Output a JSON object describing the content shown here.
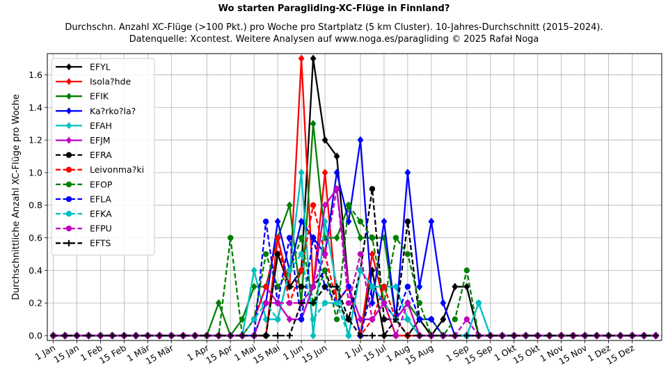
{
  "chart_data": {
    "type": "line",
    "title": "Wo starten Paragliding-XC-Flüge in Finnland?",
    "subtitle_lines": [
      "Durchschn. Anzahl XC-Flüge (>100 Pkt.) pro Woche pro Startplatz (5 km Cluster). 10-Jahres-Durchschnitt (2015–2024).",
      "Datenquelle: Xcontest. Weitere Analysen auf www.noga.es/paragliding © 2025 Rafał Noga"
    ],
    "ylabel": "Durchschnittliche Anzahl XC-Flüge pro Woche",
    "xlabel": "",
    "ylim": [
      -0.03,
      1.73
    ],
    "xlim": [
      -0.5,
      51.5
    ],
    "yticks": [
      0.0,
      0.2,
      0.4,
      0.6,
      0.8,
      1.0,
      1.2,
      1.4,
      1.6
    ],
    "ytick_labels": [
      "0.0",
      "0.2",
      "0.4",
      "0.6",
      "0.8",
      "1.0",
      "1.2",
      "1.4",
      "1.6"
    ],
    "xticks": [
      0,
      2,
      4,
      6,
      8,
      10,
      13,
      15,
      17,
      19,
      21,
      23,
      26,
      28,
      30,
      32,
      35,
      37,
      39,
      41,
      43,
      45,
      47,
      49
    ],
    "xtick_labels": [
      "1 Jan",
      "15 Jan",
      "1 Feb",
      "15 Feb",
      "1 Mär",
      "15 Mär",
      "1 Apr",
      "15 Apr",
      "1 Mai",
      "15 Mai",
      "1 Jun",
      "15 Jun",
      "1 Jul",
      "15 Jul",
      "1 Aug",
      "15 Aug",
      "1 Sep",
      "15 Sep",
      "1 Okt",
      "15 Okt",
      "1 Nov",
      "15 Nov",
      "1 Dez",
      "15 Dez"
    ],
    "grid": true,
    "legend_position": "top-left",
    "x_unit": "week index (0 = 1 Jan)",
    "series": [
      {
        "name": "EFYL",
        "color": "#000000",
        "style": "solid",
        "marker": "diamond",
        "values": [
          0,
          0,
          0,
          0,
          0,
          0,
          0,
          0,
          0,
          0,
          0,
          0,
          0,
          0,
          0,
          0,
          0,
          0,
          0,
          0.5,
          0.3,
          0.4,
          1.7,
          1.2,
          1.1,
          0.3,
          0,
          0.4,
          0,
          0,
          0,
          0.1,
          0,
          0.1,
          0.3,
          0.3,
          0,
          0,
          0,
          0,
          0,
          0,
          0,
          0,
          0,
          0,
          0,
          0,
          0,
          0,
          0,
          0
        ]
      },
      {
        "name": "Isola?hde",
        "color": "#ff0000",
        "style": "solid",
        "marker": "diamond",
        "values": [
          0,
          0,
          0,
          0,
          0,
          0,
          0,
          0,
          0,
          0,
          0,
          0,
          0,
          0,
          0,
          0,
          0,
          0,
          0,
          0.6,
          0.3,
          1.7,
          0.3,
          1.0,
          0.2,
          0.3,
          0,
          0.5,
          0.2,
          0,
          0,
          0,
          0,
          0,
          0,
          0,
          0,
          0,
          0,
          0,
          0,
          0,
          0,
          0,
          0,
          0,
          0,
          0,
          0,
          0,
          0,
          0
        ]
      },
      {
        "name": "EFIK",
        "color": "#008000",
        "style": "solid",
        "marker": "diamond",
        "values": [
          0,
          0,
          0,
          0,
          0,
          0,
          0,
          0,
          0,
          0,
          0,
          0,
          0,
          0,
          0.2,
          0,
          0.1,
          0.3,
          0.3,
          0.6,
          0.8,
          0.2,
          1.3,
          0.6,
          0.6,
          0.8,
          0.6,
          0.6,
          0.6,
          0.1,
          0.2,
          0.1,
          0.1,
          0,
          0,
          0,
          0,
          0,
          0,
          0,
          0,
          0,
          0,
          0,
          0,
          0,
          0,
          0,
          0,
          0,
          0,
          0
        ]
      },
      {
        "name": "Ka?rko?la?",
        "color": "#0000ff",
        "style": "solid",
        "marker": "diamond",
        "values": [
          0,
          0,
          0,
          0,
          0,
          0,
          0,
          0,
          0,
          0,
          0,
          0,
          0,
          0,
          0,
          0,
          0,
          0,
          0.2,
          0.7,
          0.4,
          0.7,
          0.6,
          0.5,
          1.0,
          0.7,
          1.2,
          0.2,
          0.7,
          0.1,
          1.0,
          0.3,
          0.7,
          0.2,
          0,
          0,
          0,
          0,
          0,
          0,
          0,
          0,
          0,
          0,
          0,
          0,
          0,
          0,
          0,
          0,
          0,
          0
        ]
      },
      {
        "name": "EFAH",
        "color": "#00bfbf",
        "style": "solid",
        "marker": "diamond",
        "values": [
          0,
          0,
          0,
          0,
          0,
          0,
          0,
          0,
          0,
          0,
          0,
          0,
          0,
          0,
          0,
          0,
          0,
          0.4,
          0.1,
          0.1,
          0.4,
          1.0,
          0,
          0.7,
          0.3,
          0,
          0.4,
          0.3,
          0.3,
          0.3,
          0.1,
          0,
          0,
          0,
          0,
          0,
          0.2,
          0,
          0,
          0,
          0,
          0,
          0,
          0,
          0,
          0,
          0,
          0,
          0,
          0,
          0,
          0
        ]
      },
      {
        "name": "EFJM",
        "color": "#bf00bf",
        "style": "solid",
        "marker": "diamond",
        "values": [
          0,
          0,
          0,
          0,
          0,
          0,
          0,
          0,
          0,
          0,
          0,
          0,
          0,
          0,
          0,
          0,
          0,
          0.1,
          0.3,
          0.2,
          0.1,
          0.1,
          0.3,
          0.8,
          0.9,
          0.3,
          0.1,
          0.1,
          0.2,
          0.1,
          0.2,
          0,
          0,
          0,
          0,
          0,
          0,
          0,
          0,
          0,
          0,
          0,
          0,
          0,
          0,
          0,
          0,
          0,
          0,
          0,
          0,
          0
        ]
      },
      {
        "name": "EFRA",
        "color": "#000000",
        "style": "dashed",
        "marker": "circle",
        "values": [
          0,
          0,
          0,
          0,
          0,
          0,
          0,
          0,
          0,
          0,
          0,
          0,
          0,
          0,
          0,
          0,
          0,
          0,
          0,
          0.5,
          0.3,
          0.3,
          0.3,
          0.4,
          0.2,
          0.1,
          0.4,
          0.9,
          0.1,
          0.1,
          0.7,
          0.1,
          0,
          0,
          0,
          0,
          0,
          0,
          0,
          0,
          0,
          0,
          0,
          0,
          0,
          0,
          0,
          0,
          0,
          0,
          0,
          0
        ]
      },
      {
        "name": "Leivonma?ki",
        "color": "#ff0000",
        "style": "dashed",
        "marker": "circle",
        "values": [
          0,
          0,
          0,
          0,
          0,
          0,
          0,
          0,
          0,
          0,
          0,
          0,
          0,
          0,
          0,
          0,
          0,
          0.1,
          0.3,
          0.6,
          0.2,
          0.4,
          0.8,
          0.5,
          0.2,
          0.3,
          0,
          0.1,
          0.3,
          0.1,
          0,
          0,
          0,
          0,
          0,
          0,
          0,
          0,
          0,
          0,
          0,
          0,
          0,
          0,
          0,
          0,
          0,
          0,
          0,
          0,
          0,
          0
        ]
      },
      {
        "name": "EFOP",
        "color": "#008000",
        "style": "dashed",
        "marker": "circle",
        "values": [
          0,
          0,
          0,
          0,
          0,
          0,
          0,
          0,
          0,
          0,
          0,
          0,
          0,
          0,
          0,
          0.6,
          0,
          0.1,
          0.5,
          0.3,
          0.4,
          0.6,
          0.2,
          0.4,
          0.1,
          0.8,
          0.7,
          0.6,
          0.2,
          0.6,
          0.5,
          0.2,
          0,
          0,
          0.1,
          0.4,
          0,
          0,
          0,
          0,
          0,
          0,
          0,
          0,
          0,
          0,
          0,
          0,
          0,
          0,
          0,
          0
        ]
      },
      {
        "name": "EFLA",
        "color": "#0000ff",
        "style": "dashed",
        "marker": "circle",
        "values": [
          0,
          0,
          0,
          0,
          0,
          0,
          0,
          0,
          0,
          0,
          0,
          0,
          0,
          0,
          0,
          0,
          0,
          0,
          0.7,
          0.2,
          0.6,
          0.1,
          0.6,
          0.3,
          0.2,
          0.3,
          0,
          0.3,
          0.2,
          0.1,
          0.3,
          0.1,
          0.1,
          0,
          0,
          0,
          0,
          0,
          0,
          0,
          0,
          0,
          0,
          0,
          0,
          0,
          0,
          0,
          0,
          0,
          0,
          0
        ]
      },
      {
        "name": "EFKA",
        "color": "#00bfbf",
        "style": "dashed",
        "marker": "circle",
        "values": [
          0,
          0,
          0,
          0,
          0,
          0,
          0,
          0,
          0,
          0,
          0,
          0,
          0,
          0,
          0,
          0,
          0,
          0.1,
          0.2,
          0.1,
          0.4,
          0.5,
          0.1,
          0.2,
          0.2,
          0,
          0.4,
          0.3,
          0.2,
          0.1,
          0.1,
          0,
          0,
          0,
          0,
          0,
          0.2,
          0,
          0,
          0,
          0,
          0,
          0,
          0,
          0,
          0,
          0,
          0,
          0,
          0,
          0,
          0
        ]
      },
      {
        "name": "EFPU",
        "color": "#bf00bf",
        "style": "dashed",
        "marker": "circle",
        "values": [
          0,
          0,
          0,
          0,
          0,
          0,
          0,
          0,
          0,
          0,
          0,
          0,
          0,
          0,
          0,
          0,
          0,
          0,
          0.2,
          0.2,
          0.2,
          0.2,
          0.3,
          0.5,
          0.9,
          0.2,
          0.5,
          0.1,
          0.2,
          0,
          0.2,
          0,
          0,
          0,
          0,
          0.1,
          0,
          0,
          0,
          0,
          0,
          0,
          0,
          0,
          0,
          0,
          0,
          0,
          0,
          0,
          0,
          0
        ]
      },
      {
        "name": "EFTS",
        "color": "#000000",
        "style": "dashed",
        "marker": "plus",
        "values": [
          0,
          0,
          0,
          0,
          0,
          0,
          0,
          0,
          0,
          0,
          0,
          0,
          0,
          0,
          0,
          0,
          0,
          0,
          0,
          0,
          0,
          0.2,
          0.2,
          0.3,
          0.3,
          0.1,
          0,
          0,
          0,
          0.1,
          0,
          0,
          0,
          0,
          0,
          0,
          0,
          0,
          0,
          0,
          0,
          0,
          0,
          0,
          0,
          0,
          0,
          0,
          0,
          0,
          0,
          0
        ]
      }
    ]
  }
}
